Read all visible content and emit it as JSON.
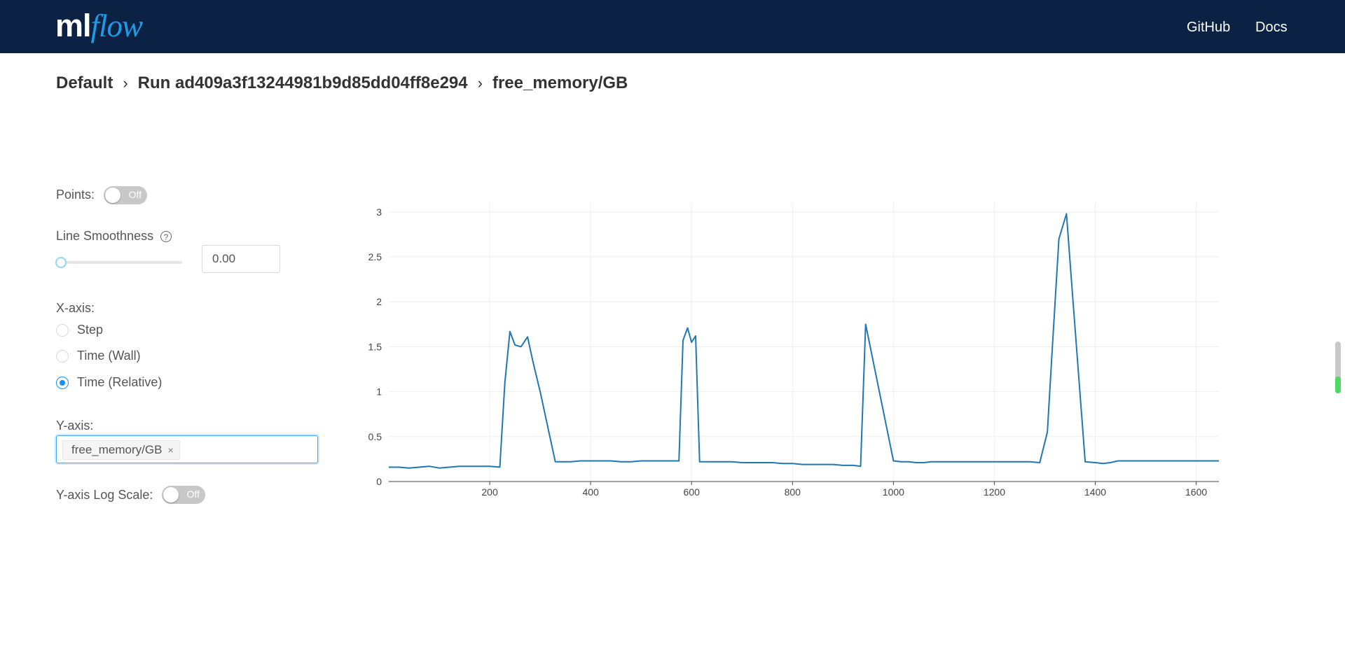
{
  "header": {
    "logo_ml": "ml",
    "logo_flow": "flow",
    "github_label": "GitHub",
    "docs_label": "Docs"
  },
  "breadcrumb": {
    "experiment": "Default",
    "run": "Run ad409a3f13244981b9d85dd04ff8e294",
    "metric": "free_memory/GB",
    "separator": "›"
  },
  "controls": {
    "points_label": "Points:",
    "points_toggle": "Off",
    "smoothness_label": "Line Smoothness",
    "smoothness_help": "?",
    "smoothness_value": "0.00",
    "xaxis_label": "X-axis:",
    "xaxis_options": [
      {
        "label": "Step",
        "checked": false
      },
      {
        "label": "Time (Wall)",
        "checked": false
      },
      {
        "label": "Time (Relative)",
        "checked": true
      }
    ],
    "yaxis_label": "Y-axis:",
    "yaxis_selected": "free_memory/GB",
    "yaxis_tag_close": "×",
    "log_scale_label": "Y-axis Log Scale:",
    "log_scale_toggle": "Off"
  },
  "colors": {
    "navbar": "#0b2244",
    "line": "#1f77b4",
    "accent": "#1890ff"
  },
  "chart_data": {
    "type": "line",
    "title": "",
    "xlabel": "",
    "ylabel": "",
    "xlim": [
      0,
      1645
    ],
    "ylim": [
      0,
      3.1
    ],
    "grid": true,
    "xticks": [
      200,
      400,
      600,
      800,
      1000,
      1200,
      1400,
      1600
    ],
    "yticks": [
      0,
      0.5,
      1,
      1.5,
      2,
      2.5,
      3
    ],
    "series": [
      {
        "name": "free_memory/GB",
        "x": [
          0,
          20,
          40,
          60,
          80,
          100,
          120,
          140,
          160,
          180,
          200,
          220,
          230,
          240,
          250,
          262,
          275,
          285,
          300,
          330,
          340,
          360,
          380,
          400,
          420,
          440,
          460,
          480,
          500,
          520,
          540,
          560,
          575,
          583,
          592,
          600,
          608,
          616,
          625,
          640,
          660,
          680,
          700,
          720,
          740,
          760,
          780,
          800,
          820,
          840,
          860,
          880,
          900,
          920,
          935,
          945,
          1000,
          1015,
          1030,
          1045,
          1060,
          1075,
          1090,
          1110,
          1130,
          1150,
          1170,
          1190,
          1210,
          1230,
          1250,
          1270,
          1290,
          1305,
          1315,
          1328,
          1343,
          1352,
          1380,
          1400,
          1415,
          1430,
          1445,
          1460,
          1480,
          1500,
          1520,
          1540,
          1560,
          1580,
          1600,
          1620,
          1645
        ],
        "y": [
          0.16,
          0.16,
          0.15,
          0.16,
          0.17,
          0.15,
          0.16,
          0.17,
          0.17,
          0.17,
          0.17,
          0.16,
          1.1,
          1.67,
          1.52,
          1.5,
          1.61,
          1.35,
          1.0,
          0.22,
          0.22,
          0.22,
          0.23,
          0.23,
          0.23,
          0.23,
          0.22,
          0.22,
          0.23,
          0.23,
          0.23,
          0.23,
          0.23,
          1.57,
          1.71,
          1.55,
          1.62,
          0.22,
          0.22,
          0.22,
          0.22,
          0.22,
          0.21,
          0.21,
          0.21,
          0.21,
          0.2,
          0.2,
          0.19,
          0.19,
          0.19,
          0.19,
          0.18,
          0.18,
          0.17,
          1.75,
          0.23,
          0.22,
          0.22,
          0.21,
          0.21,
          0.22,
          0.22,
          0.22,
          0.22,
          0.22,
          0.22,
          0.22,
          0.22,
          0.22,
          0.22,
          0.22,
          0.21,
          0.55,
          1.5,
          2.7,
          2.98,
          2.3,
          0.22,
          0.21,
          0.2,
          0.21,
          0.23,
          0.23,
          0.23,
          0.23,
          0.23,
          0.23,
          0.23,
          0.23,
          0.23,
          0.23,
          0.23
        ]
      }
    ]
  }
}
